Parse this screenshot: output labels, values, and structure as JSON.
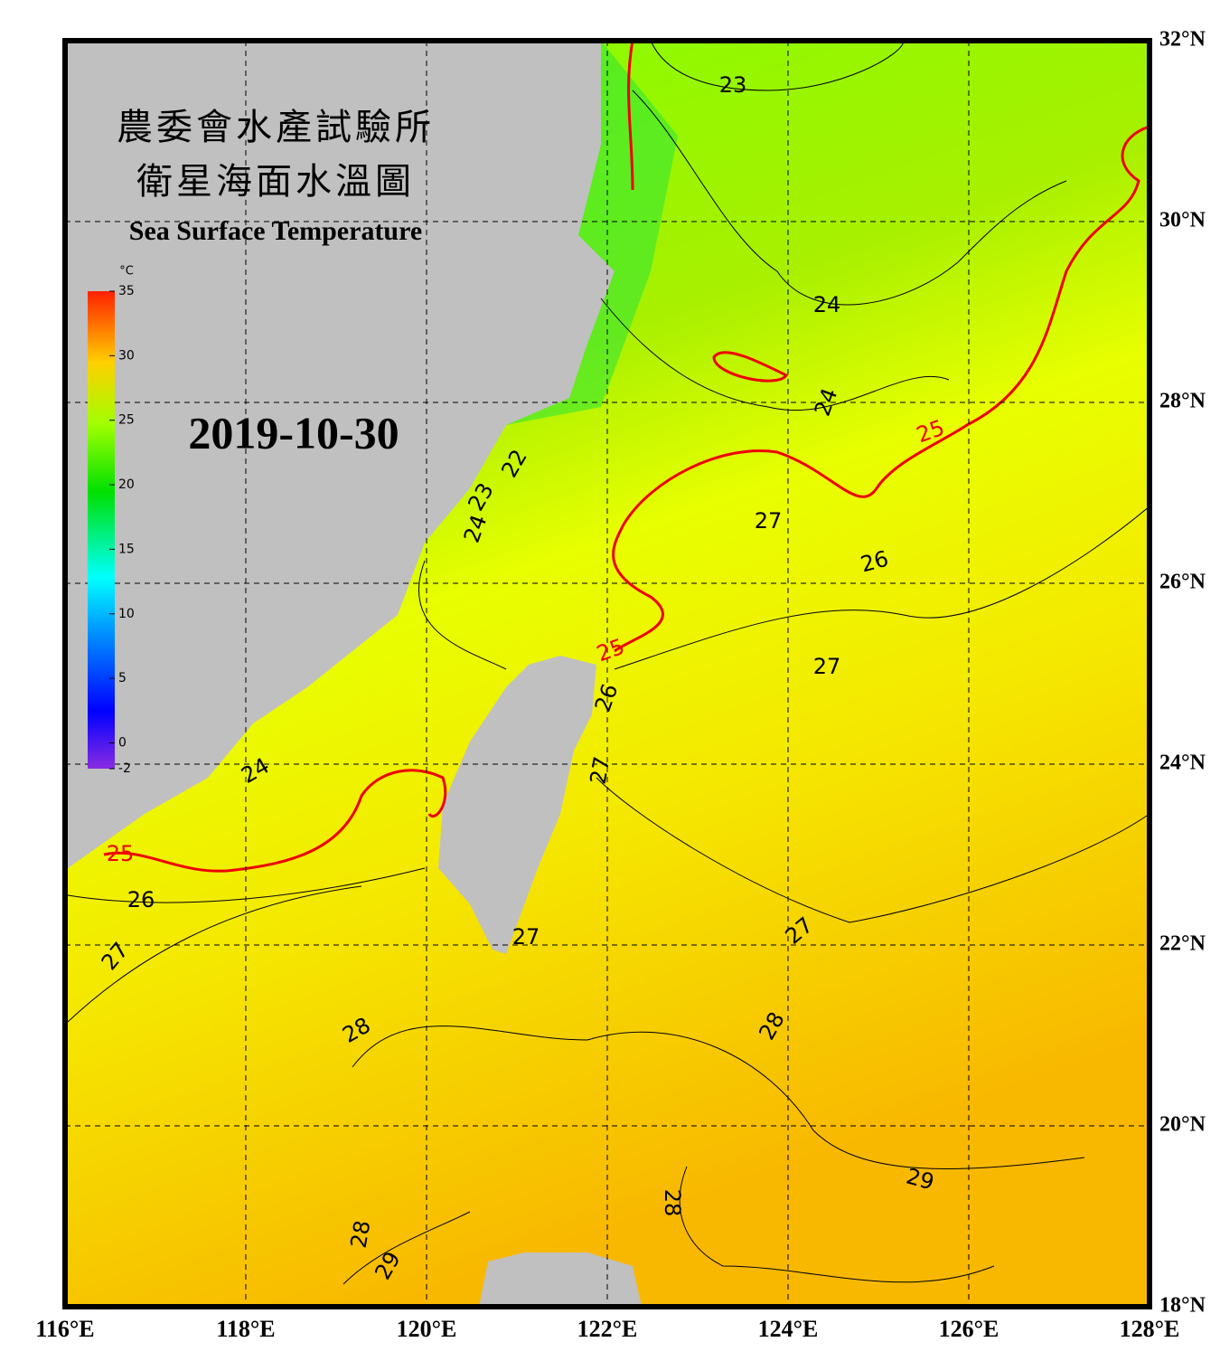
{
  "header": {
    "title": "農委會水產試驗所",
    "subtitle": "衛星海面水溫圖",
    "english_title": "Sea Surface Temperature",
    "date": "2019-10-30"
  },
  "colorbar": {
    "unit": "°C",
    "range": [
      -2,
      35
    ],
    "ticks": [
      -2,
      0,
      5,
      10,
      15,
      20,
      25,
      30,
      35
    ]
  },
  "map": {
    "lon_range": [
      116,
      128
    ],
    "lat_range": [
      18,
      32
    ],
    "lon_ticks": [
      {
        "value": 116,
        "label": "116°E"
      },
      {
        "value": 118,
        "label": "118°E"
      },
      {
        "value": 120,
        "label": "120°E"
      },
      {
        "value": 122,
        "label": "122°E"
      },
      {
        "value": 124,
        "label": "124°E"
      },
      {
        "value": 126,
        "label": "126°E"
      },
      {
        "value": 128,
        "label": "128°E"
      }
    ],
    "lat_ticks": [
      {
        "value": 18,
        "label": "18°N"
      },
      {
        "value": 20,
        "label": "20°N"
      },
      {
        "value": 22,
        "label": "22°N"
      },
      {
        "value": 24,
        "label": "24°N"
      },
      {
        "value": 26,
        "label": "26°N"
      },
      {
        "value": 28,
        "label": "28°N"
      },
      {
        "value": 30,
        "label": "30°N"
      },
      {
        "value": 32,
        "label": "32°N"
      }
    ],
    "contour_labels": [
      "23",
      "24",
      "24",
      "25",
      "27",
      "26",
      "27",
      "22",
      "23",
      "24",
      "25",
      "26",
      "27",
      "24",
      "25",
      "26",
      "27",
      "27",
      "27",
      "28",
      "28",
      "28",
      "29",
      "28",
      "29"
    ]
  }
}
